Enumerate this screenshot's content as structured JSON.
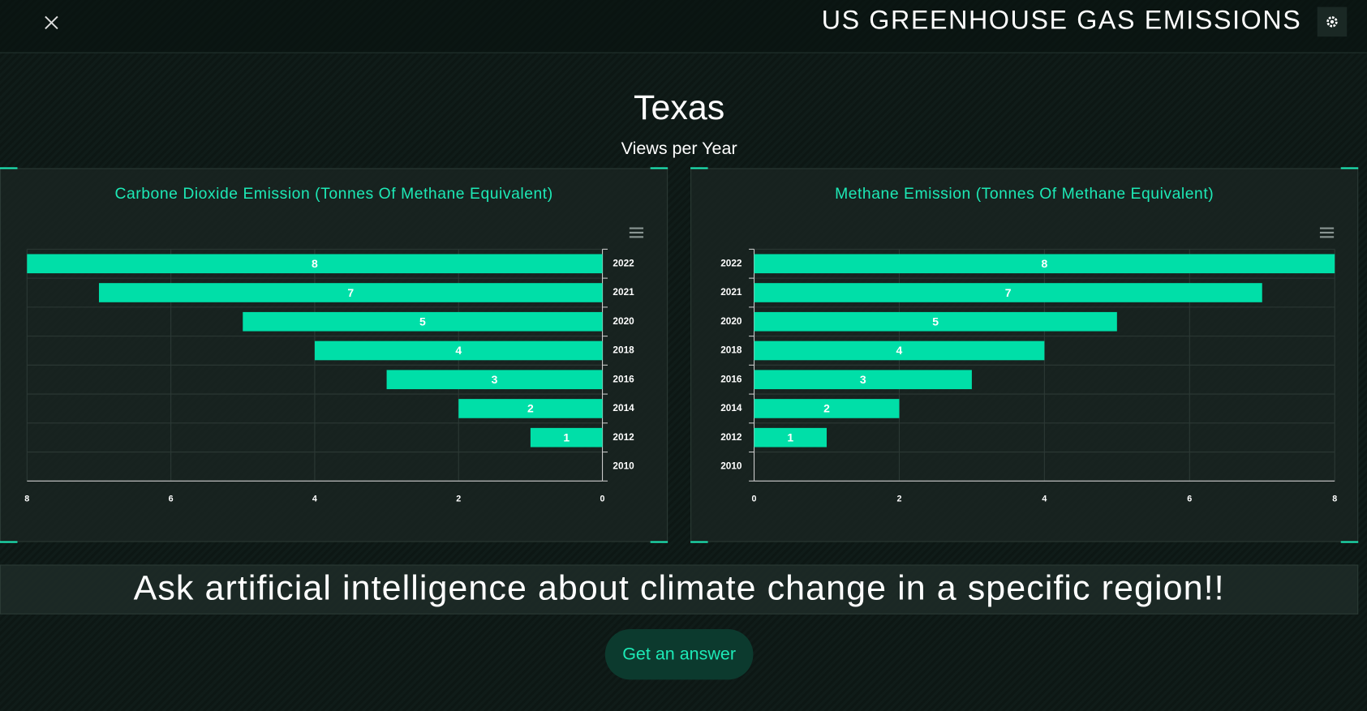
{
  "header": {
    "title": "US GREENHOUSE GAS EMISSIONS"
  },
  "region": "Texas",
  "subtitle": "Views per Year",
  "chart_data": [
    {
      "type": "bar",
      "orientation": "horizontal",
      "title": "Carbone Dioxide Emission (Tonnes Of Methane Equivalent)",
      "categories": [
        "2022",
        "2021",
        "2020",
        "2018",
        "2016",
        "2014",
        "2012",
        "2010"
      ],
      "values": [
        8,
        7,
        5,
        4,
        3,
        2,
        1,
        null
      ],
      "color": "#00dfa8",
      "xlim": [
        8,
        0
      ],
      "xticks": [
        8,
        6,
        4,
        2,
        0
      ],
      "grid": true,
      "category_axis_side": "right"
    },
    {
      "type": "bar",
      "orientation": "horizontal",
      "title": "Methane Emission (Tonnes Of Methane Equivalent)",
      "categories": [
        "2022",
        "2021",
        "2020",
        "2018",
        "2016",
        "2014",
        "2012",
        "2010"
      ],
      "values": [
        8,
        7,
        5,
        4,
        3,
        2,
        1,
        null
      ],
      "color": "#00dfa8",
      "xlim": [
        0,
        8
      ],
      "xticks": [
        0,
        2,
        4,
        6,
        8
      ],
      "grid": true,
      "category_axis_side": "left"
    }
  ],
  "prompt": "Ask artificial intelligence about climate change in a specific region!!",
  "button": "Get an answer"
}
